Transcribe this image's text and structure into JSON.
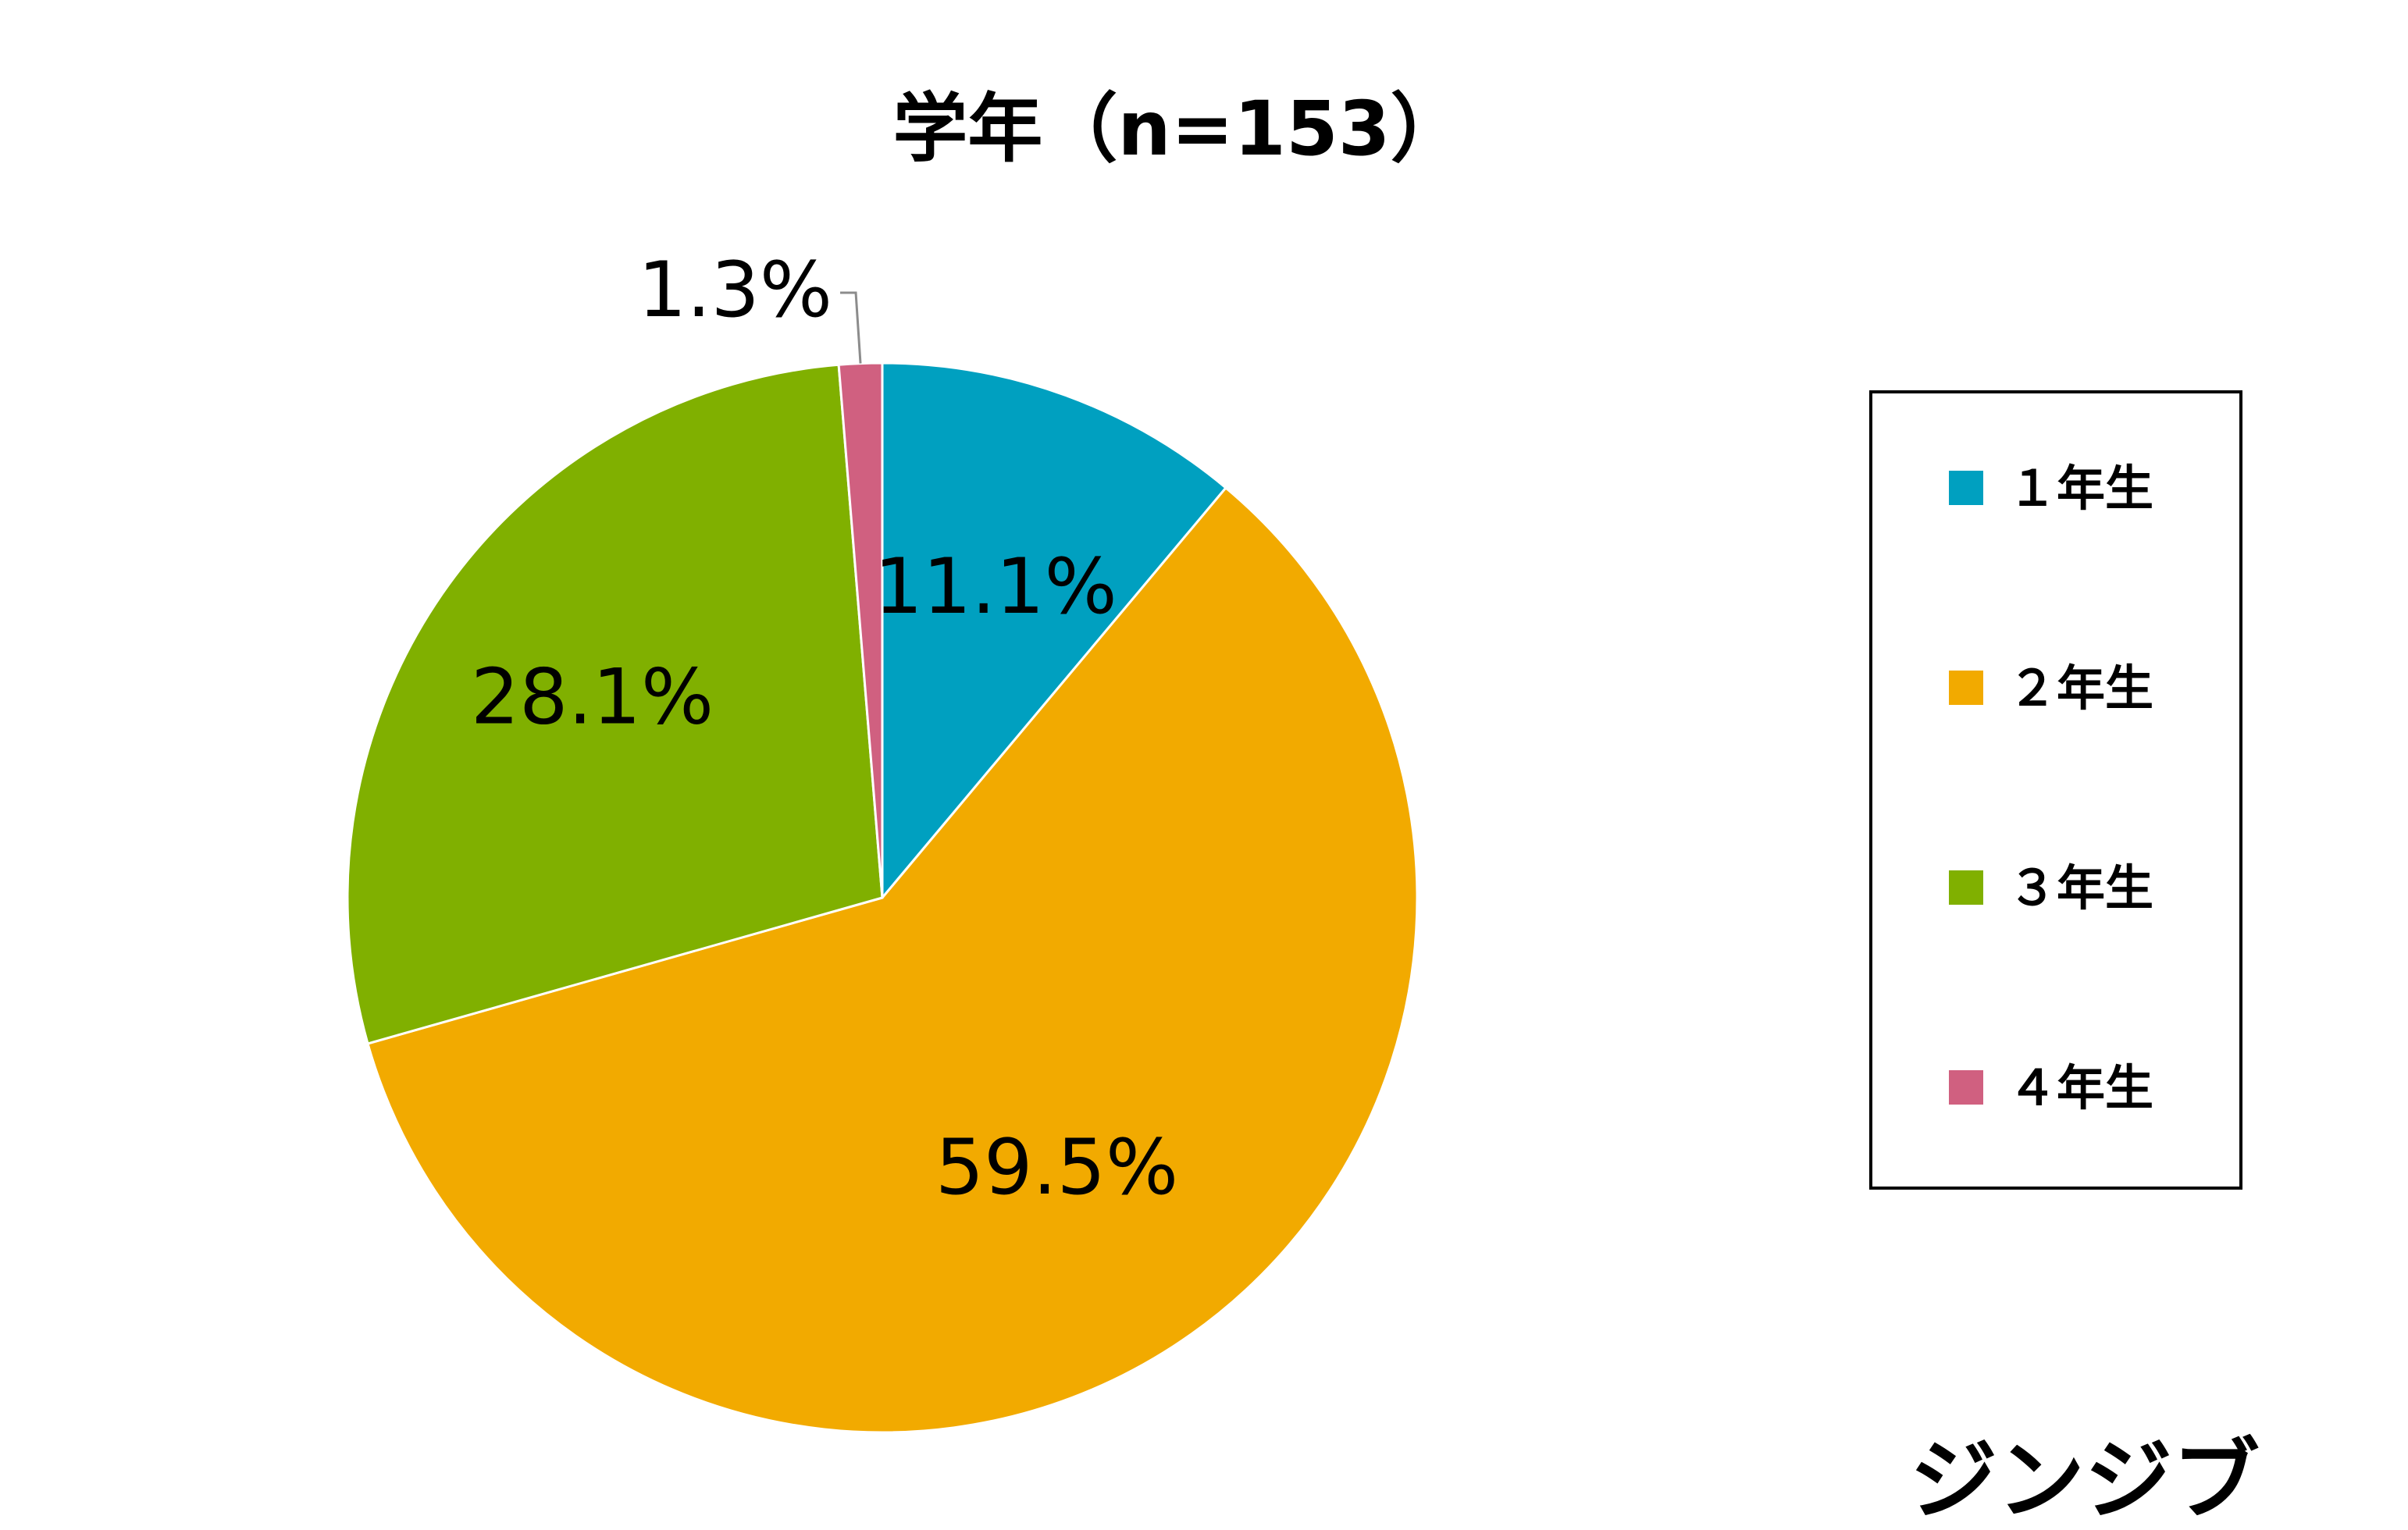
{
  "chart_data": {
    "type": "pie",
    "title": "学年（n=153）",
    "slices": [
      {
        "label": "１年生",
        "value": 11.1,
        "value_label": "11.1%",
        "color": "#00A0C0"
      },
      {
        "label": "２年生",
        "value": 59.5,
        "value_label": "59.5%",
        "color": "#F2AA00"
      },
      {
        "label": "３年生",
        "value": 28.1,
        "value_label": "28.1%",
        "color": "#80B000"
      },
      {
        "label": "４年生",
        "value": 1.3,
        "value_label": "1.3%",
        "color": "#D06080"
      }
    ],
    "start_angle": "12 o'clock",
    "direction": "clockwise",
    "legend_position": "right"
  },
  "brand": {
    "text": "ジンジブ"
  }
}
